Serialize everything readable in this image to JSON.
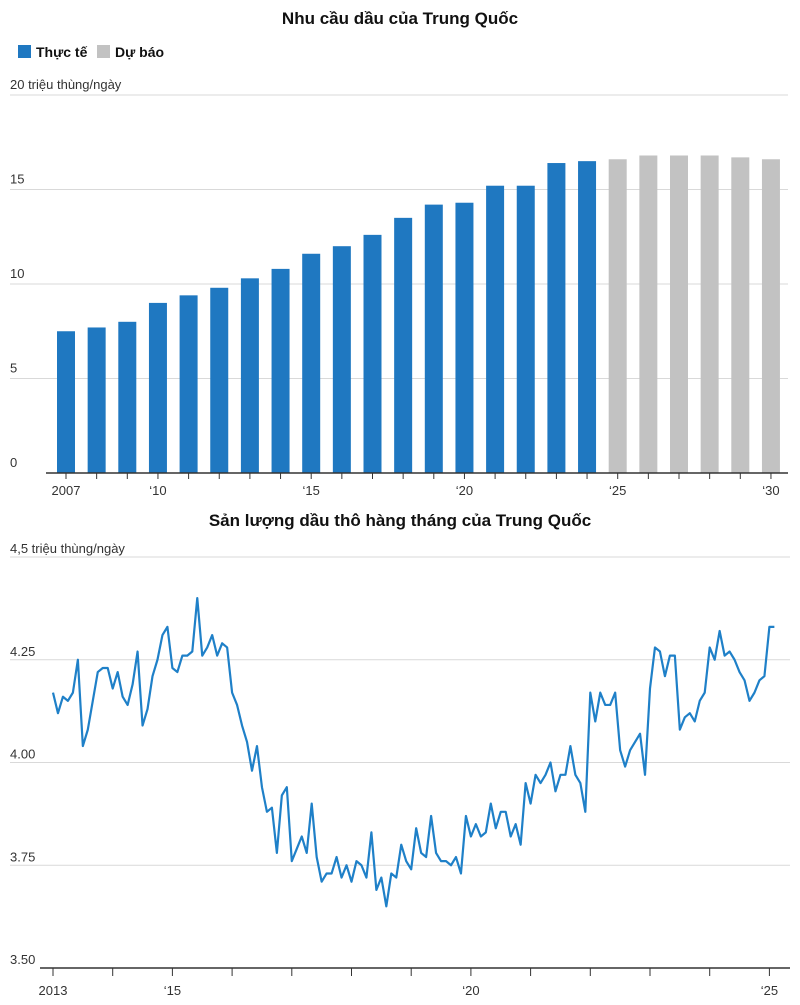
{
  "colors": {
    "actual": "#1f78c1",
    "forecast": "#c2c2c2",
    "line": "#1f80c8",
    "grid": "#d9d9d9"
  },
  "chart_data": [
    {
      "type": "bar",
      "title": "Nhu cầu dầu của Trung Quốc",
      "legend": [
        {
          "label": "Thực tế",
          "color": "#1f78c1"
        },
        {
          "label": "Dự báo",
          "color": "#c2c2c2"
        }
      ],
      "ylabel": "triệu thùng/ngày",
      "ylim": [
        0,
        20
      ],
      "yticks": [
        {
          "value": 0,
          "label": "0"
        },
        {
          "value": 5,
          "label": "5"
        },
        {
          "value": 10,
          "label": "10"
        },
        {
          "value": 15,
          "label": "15"
        },
        {
          "value": 20,
          "label": "20 triệu thùng/ngày"
        }
      ],
      "xticks": [
        {
          "year": 2007,
          "label": "2007"
        },
        {
          "year": 2010,
          "label": "‘10"
        },
        {
          "year": 2015,
          "label": "‘15"
        },
        {
          "year": 2020,
          "label": "‘20"
        },
        {
          "year": 2025,
          "label": "‘25"
        },
        {
          "year": 2030,
          "label": "‘30"
        }
      ],
      "series": [
        {
          "name": "Thực tế",
          "x": [
            2007,
            2008,
            2009,
            2010,
            2011,
            2012,
            2013,
            2014,
            2015,
            2016,
            2017,
            2018,
            2019,
            2020,
            2021,
            2022,
            2023,
            2024
          ],
          "values": [
            7.5,
            7.7,
            8.0,
            9.0,
            9.4,
            9.8,
            10.3,
            10.8,
            11.6,
            12.0,
            12.6,
            13.5,
            14.2,
            14.3,
            15.2,
            15.2,
            16.4,
            16.5
          ]
        },
        {
          "name": "Dự báo",
          "x": [
            2025,
            2026,
            2027,
            2028,
            2029,
            2030
          ],
          "values": [
            16.6,
            16.8,
            16.8,
            16.8,
            16.7,
            16.6
          ]
        }
      ]
    },
    {
      "type": "line",
      "title": "Sản lượng dầu thô hàng tháng của Trung Quốc",
      "ylabel": "triệu thùng/ngày",
      "ylim": [
        3.5,
        4.5
      ],
      "yticks": [
        {
          "value": 3.5,
          "label": "3.50"
        },
        {
          "value": 3.75,
          "label": "3.75"
        },
        {
          "value": 4.0,
          "label": "4.00"
        },
        {
          "value": 4.25,
          "label": "4.25"
        },
        {
          "value": 4.5,
          "label": "4,5 triệu thùng/ngày"
        }
      ],
      "xticks": [
        {
          "year": 2013,
          "label": "2013"
        },
        {
          "year": 2015,
          "label": "‘15"
        },
        {
          "year": 2020,
          "label": "‘20"
        },
        {
          "year": 2025,
          "label": "‘25"
        }
      ],
      "x_start": 2013.0,
      "x_step": 0.0833333,
      "series": [
        {
          "name": "Sản lượng",
          "values": [
            4.17,
            4.12,
            4.16,
            4.15,
            4.17,
            4.25,
            4.04,
            4.08,
            4.15,
            4.22,
            4.23,
            4.23,
            4.18,
            4.22,
            4.16,
            4.14,
            4.19,
            4.27,
            4.09,
            4.13,
            4.21,
            4.25,
            4.31,
            4.33,
            4.23,
            4.22,
            4.26,
            4.26,
            4.27,
            4.4,
            4.26,
            4.28,
            4.31,
            4.26,
            4.29,
            4.28,
            4.17,
            4.14,
            4.09,
            4.05,
            3.98,
            4.04,
            3.94,
            3.88,
            3.89,
            3.78,
            3.92,
            3.94,
            3.76,
            3.79,
            3.82,
            3.78,
            3.9,
            3.77,
            3.71,
            3.73,
            3.73,
            3.77,
            3.72,
            3.75,
            3.71,
            3.76,
            3.75,
            3.72,
            3.83,
            3.69,
            3.72,
            3.65,
            3.73,
            3.72,
            3.8,
            3.76,
            3.74,
            3.84,
            3.78,
            3.77,
            3.87,
            3.78,
            3.76,
            3.76,
            3.75,
            3.77,
            3.73,
            3.87,
            3.82,
            3.85,
            3.82,
            3.83,
            3.9,
            3.84,
            3.88,
            3.88,
            3.82,
            3.85,
            3.8,
            3.95,
            3.9,
            3.97,
            3.95,
            3.97,
            4.0,
            3.93,
            3.97,
            3.97,
            4.04,
            3.97,
            3.95,
            3.88,
            4.17,
            4.1,
            4.17,
            4.14,
            4.14,
            4.17,
            4.03,
            3.99,
            4.03,
            4.05,
            4.07,
            3.97,
            4.18,
            4.28,
            4.27,
            4.21,
            4.26,
            4.26,
            4.08,
            4.11,
            4.12,
            4.1,
            4.15,
            4.17,
            4.28,
            4.25,
            4.32,
            4.26,
            4.27,
            4.25,
            4.22,
            4.2,
            4.15,
            4.17,
            4.2,
            4.21,
            4.33,
            4.33
          ]
        }
      ]
    }
  ]
}
